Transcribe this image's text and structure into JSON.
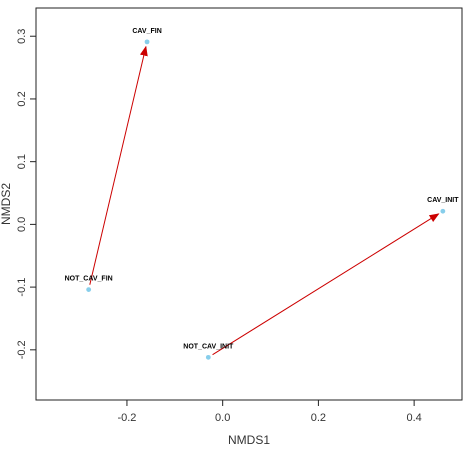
{
  "chart_data": {
    "type": "scatter",
    "title": "",
    "xlabel": "NMDS1",
    "ylabel": "NMDS2",
    "xlim": [
      -0.39,
      0.5
    ],
    "ylim": [
      -0.28,
      0.345
    ],
    "x_ticks": [
      -0.2,
      0.0,
      0.2,
      0.4
    ],
    "x_tick_labels": [
      "-0.2",
      "0.0",
      "0.2",
      "0.4"
    ],
    "y_ticks": [
      -0.2,
      -0.1,
      0.0,
      0.1,
      0.2,
      0.3
    ],
    "y_tick_labels": [
      "-0.2",
      "-0.1",
      "0.0",
      "0.1",
      "0.2",
      "0.3"
    ],
    "grid": false,
    "point_color": "#87CEEB",
    "arrow_color": "#CC0000",
    "points": [
      {
        "label": "CAV_FIN",
        "x": -0.158,
        "y": 0.291
      },
      {
        "label": "NOT_CAV_FIN",
        "x": -0.28,
        "y": -0.104
      },
      {
        "label": "NOT_CAV_INIT",
        "x": -0.03,
        "y": -0.212
      },
      {
        "label": "CAV_INIT",
        "x": 0.46,
        "y": 0.021
      }
    ],
    "arrows": [
      {
        "from": "NOT_CAV_FIN",
        "to": "CAV_FIN"
      },
      {
        "from": "NOT_CAV_INIT",
        "to": "CAV_INIT"
      }
    ]
  }
}
